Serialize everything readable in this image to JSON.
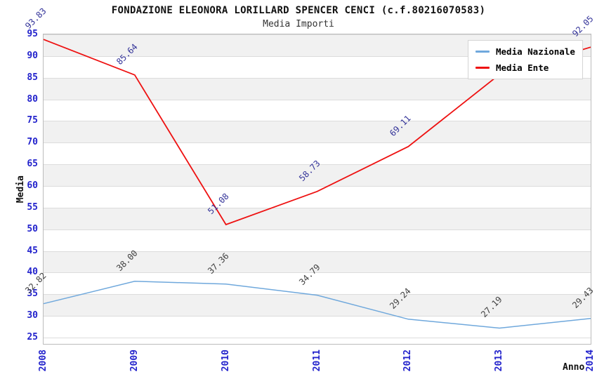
{
  "chart": {
    "title": "FONDAZIONE ELEONORA LORILLARD SPENCER CENCI (c.f.80216070583)",
    "subtitle": "Media Importi",
    "ylabel": "Media",
    "xlabel": "Anno"
  },
  "legend": {
    "position": "top-right",
    "items": [
      {
        "label": "Media Nazionale",
        "color": "#6fa8dc"
      },
      {
        "label": "Media Ente",
        "color": "#ee1111"
      }
    ]
  },
  "colors": {
    "axis_tick_text": "#2323cc",
    "band_fill": "#f1f1f1",
    "gridline": "#dcdcdc",
    "frame_border": "#bcbcbc",
    "nazionale_line": "#6fa8dc",
    "ente_line": "#ee1111",
    "nazionale_point_labels": "#404040",
    "ente_point_labels": "#333399"
  },
  "chart_data": {
    "type": "line",
    "title": "FONDAZIONE ELEONORA LORILLARD SPENCER CENCI (c.f.80216070583)",
    "subtitle": "Media Importi",
    "xlabel": "Anno",
    "ylabel": "Media",
    "x": [
      "2008",
      "2009",
      "2010",
      "2011",
      "2012",
      "2013",
      "2014"
    ],
    "ylim": [
      25,
      95
    ],
    "ytick_step": 5,
    "yticks": [
      25,
      30,
      35,
      40,
      45,
      50,
      55,
      60,
      65,
      70,
      75,
      80,
      85,
      90,
      95
    ],
    "grid": "horizontal-bands",
    "legend_position": "top-right",
    "series": [
      {
        "name": "Media Nazionale",
        "color": "#6fa8dc",
        "label_color": "#404040",
        "values": [
          32.82,
          38.0,
          37.36,
          34.79,
          29.24,
          27.19,
          29.43
        ],
        "labels": [
          "32.82",
          "38.00",
          "37.36",
          "34.79",
          "29.24",
          "27.19",
          "29.43"
        ]
      },
      {
        "name": "Media Ente",
        "color": "#ee1111",
        "label_color": "#333399",
        "values": [
          93.83,
          85.64,
          51.08,
          58.73,
          69.11,
          85.75,
          92.05
        ],
        "labels": [
          "93.83",
          "85.64",
          "51.08",
          "58.73",
          "69.11",
          "",
          "92.05"
        ],
        "note_2013": "label hidden behind legend box in source image"
      }
    ]
  }
}
